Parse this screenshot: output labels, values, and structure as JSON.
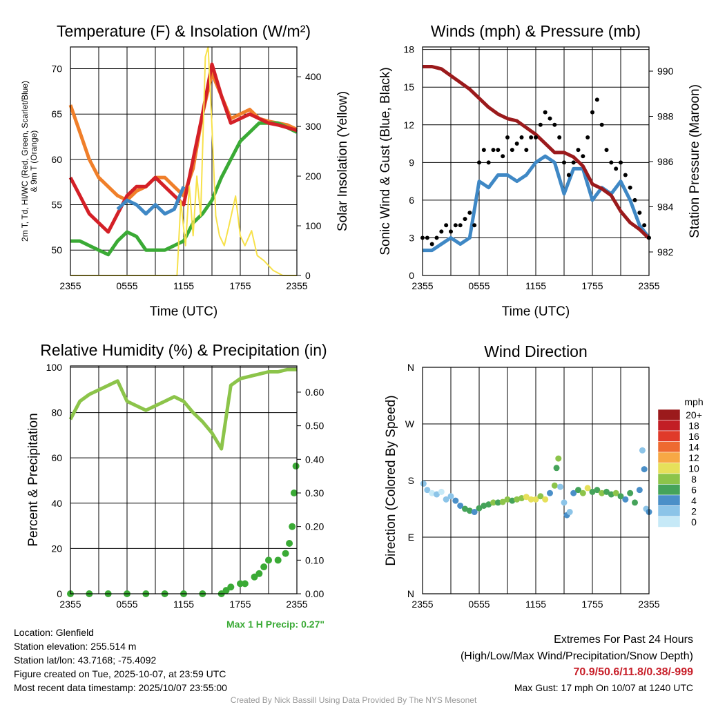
{
  "info": {
    "location": "Location: Glenfield",
    "elevation": "Station elevation: 255.514 m",
    "latlon": "Station lat/lon: 43.7168; -75.4092",
    "created": "Figure created on Tue, 2025-10-07, at 23:59 UTC",
    "recent": "Most recent data timestamp: 2025/10/07 23:55:00"
  },
  "extremes": {
    "title": "Extremes For Past 24 Hours",
    "subtitle": "(High/Low/Max Wind/Precipitation/Snow Depth)",
    "values": "70.9/50.6/11.8/0.38/-999",
    "gust": "Max Gust: 17 mph On 10/07 at 1240 UTC"
  },
  "credit": "Created By Nick Bassill Using Data Provided By The NYS Mesonet",
  "max_precip": "Max 1 H Precip: 0.27\"",
  "chart_data": [
    {
      "id": "temp",
      "type": "line",
      "title": "Temperature (F) & Insolation (W/m²)",
      "xlabel": "Time (UTC)",
      "ylabel": "2m T, Td, HI/WC (Red, Green, Scarlet/Blue) & 9m T (Orange)",
      "ylabel_line1": "2m T, Td, HI/WC (Red, Green, Scarlet/Blue)",
      "ylabel_line2": "& 9m T (Orange)",
      "y2label": "Solar Insolation (Yellow)",
      "xticks": [
        "2355",
        "0555",
        "1155",
        "1755",
        "2355"
      ],
      "yticks": [
        50,
        55,
        60,
        65,
        70
      ],
      "ylim": [
        47.2,
        72.4
      ],
      "y2ticks": [
        0,
        100,
        200,
        300,
        400
      ],
      "y2lim": [
        0,
        460
      ],
      "series": [
        {
          "name": "9m T",
          "color": "#f07f2a",
          "axis": "y",
          "values": [
            66,
            63,
            60,
            58,
            57,
            56,
            55.5,
            56.5,
            57,
            58,
            58,
            57,
            56,
            59,
            65,
            69.5,
            67,
            64.5,
            65,
            65.5,
            64.5,
            64.2,
            64,
            63.8,
            63.3
          ]
        },
        {
          "name": "Td",
          "color": "#3aaa35",
          "axis": "y",
          "values": [
            51,
            51,
            50.5,
            50,
            49.5,
            51,
            52,
            51.5,
            50,
            50,
            50,
            50.5,
            51,
            53,
            54,
            55.5,
            58,
            60,
            62,
            63,
            64,
            64,
            64,
            63.5,
            63
          ]
        },
        {
          "name": "2m T",
          "color": "#d42027",
          "axis": "y",
          "values": [
            58,
            56,
            54,
            53,
            52,
            54,
            56,
            57,
            57,
            58,
            57,
            56,
            55,
            60,
            65,
            70.5,
            67,
            64,
            64.5,
            65,
            64.5,
            64,
            63.8,
            63.5,
            63.2
          ]
        },
        {
          "name": "WC",
          "color": "#3f88c5",
          "axis": "y",
          "values": [
            null,
            null,
            null,
            null,
            null,
            54.5,
            55.5,
            55,
            54,
            55,
            54,
            54.5,
            57,
            null,
            null,
            null,
            null,
            null,
            null,
            null,
            null,
            null,
            null,
            null,
            null
          ]
        },
        {
          "name": "Solar",
          "color": "#f7e14a",
          "axis": "y2",
          "points": [
            [
              0,
              0
            ],
            [
              11.3,
              0
            ],
            [
              11.7,
              150
            ],
            [
              12.2,
              60
            ],
            [
              12.6,
              180
            ],
            [
              13.0,
              80
            ],
            [
              13.4,
              200
            ],
            [
              13.8,
              120
            ],
            [
              14.3,
              440
            ],
            [
              14.6,
              460
            ],
            [
              15.0,
              300
            ],
            [
              15.4,
              120
            ],
            [
              15.8,
              80
            ],
            [
              16.3,
              60
            ],
            [
              16.8,
              100
            ],
            [
              17.5,
              160
            ],
            [
              18.0,
              80
            ],
            [
              18.5,
              60
            ],
            [
              19.2,
              90
            ],
            [
              19.8,
              40
            ],
            [
              20.5,
              30
            ],
            [
              21.5,
              10
            ],
            [
              22.5,
              0
            ],
            [
              24,
              0
            ]
          ]
        }
      ]
    },
    {
      "id": "wind",
      "type": "line",
      "title": "Winds (mph) & Pressure (mb)",
      "xlabel": "Time (UTC)",
      "ylabel": "Sonic Wind & Gust (Blue, Black)",
      "y2label": "Station Pressure (Maroon)",
      "xticks": [
        "2355",
        "0555",
        "1155",
        "1755",
        "2355"
      ],
      "yticks": [
        0,
        3,
        6,
        9,
        12,
        15,
        18
      ],
      "ylim": [
        0,
        18.2
      ],
      "y2ticks": [
        982,
        984,
        986,
        988,
        990
      ],
      "y2lim": [
        980.96,
        991.07
      ],
      "series": [
        {
          "name": "Wind",
          "color": "#3f88c5",
          "axis": "y",
          "values": [
            2,
            2,
            2.5,
            3,
            2.5,
            3,
            7.5,
            7,
            8,
            8,
            7.5,
            8,
            9,
            9.5,
            9,
            6.5,
            8.5,
            8.5,
            6,
            7,
            6.5,
            7.5,
            6,
            4,
            3
          ]
        },
        {
          "name": "Pressure",
          "color": "#9b1a1c",
          "axis": "y2",
          "values": [
            990.2,
            990.2,
            990.1,
            989.8,
            989.5,
            989.2,
            988.8,
            988.4,
            988.1,
            987.9,
            987.8,
            987.5,
            987.2,
            986.8,
            986.4,
            986.4,
            986.2,
            985.8,
            985.0,
            984.8,
            984.5,
            983.8,
            983.3,
            983.0,
            982.6
          ]
        },
        {
          "name": "Gust",
          "color": "#000000",
          "axis": "y",
          "scatter": true,
          "values": [
            3,
            3,
            2.5,
            3,
            3.5,
            4,
            3.5,
            4,
            4,
            4.5,
            5,
            4,
            9,
            10,
            9,
            10,
            10,
            9.5,
            11,
            10,
            10.5,
            11,
            10,
            11,
            11,
            12,
            13,
            12.5,
            12,
            11,
            9,
            8,
            9,
            10,
            9.5,
            11,
            13,
            14,
            12,
            10,
            9,
            8.5,
            9,
            8,
            7,
            6,
            5,
            4,
            3
          ]
        }
      ]
    },
    {
      "id": "rh",
      "type": "line",
      "title": "Relative Humidity (%) & Precipitation (in)",
      "ylabel": "Percent & Precipitation",
      "xticks": [
        "2355",
        "0555",
        "1155",
        "1755",
        "2355"
      ],
      "yticks": [
        0,
        20,
        40,
        60,
        80,
        100
      ],
      "ylim": [
        0,
        100.6
      ],
      "y2ticks": [
        "0.00",
        "0.10",
        "0.20",
        "0.30",
        "0.40",
        "0.50",
        "0.60"
      ],
      "y2lim": [
        0,
        0.678
      ],
      "series": [
        {
          "name": "RH",
          "color": "#8cc44a",
          "axis": "y",
          "values": [
            77,
            85,
            88,
            90,
            92,
            94,
            85,
            83,
            81,
            83,
            85,
            87,
            85,
            80,
            76,
            71,
            64,
            92,
            95,
            96,
            97,
            98,
            98,
            99,
            99
          ]
        },
        {
          "name": "Precip",
          "color": "#3aaa35",
          "axis": "y2",
          "scatter": true,
          "points": [
            [
              0,
              0
            ],
            [
              2,
              0
            ],
            [
              4,
              0
            ],
            [
              6,
              0
            ],
            [
              8,
              0
            ],
            [
              10,
              0
            ],
            [
              12,
              0
            ],
            [
              14,
              0
            ],
            [
              16,
              0
            ],
            [
              16.5,
              0.01
            ],
            [
              17,
              0.02
            ],
            [
              18,
              0.03
            ],
            [
              18.5,
              0.03
            ],
            [
              19.5,
              0.05
            ],
            [
              20,
              0.06
            ],
            [
              20.5,
              0.08
            ],
            [
              21,
              0.1
            ],
            [
              22,
              0.1
            ],
            [
              22.8,
              0.12
            ],
            [
              23.2,
              0.15
            ],
            [
              23.5,
              0.2
            ],
            [
              23.7,
              0.3
            ],
            [
              23.9,
              0.38
            ]
          ]
        }
      ]
    },
    {
      "id": "dir",
      "type": "scatter",
      "title": "Wind Direction",
      "ylabel": "Direction (Colored By Speed)",
      "xticks": [
        "2355",
        "0555",
        "1155",
        "1755",
        "2355"
      ],
      "yticks": [
        "N",
        "E",
        "S",
        "W",
        "N"
      ],
      "ylim": [
        0,
        360
      ],
      "colorbar": {
        "title": "mph",
        "labels": [
          "20+",
          "18",
          "16",
          "14",
          "12",
          "10",
          "8",
          "6",
          "4",
          "2",
          "0"
        ],
        "colors": [
          "#9b1a1c",
          "#c21e25",
          "#e03a2a",
          "#ee6a30",
          "#f7a845",
          "#e6e05a",
          "#8cc44a",
          "#45a35a",
          "#4a8fc8",
          "#8cc4e8",
          "#c6e9f7"
        ]
      },
      "points": [
        [
          0.1,
          175,
          2
        ],
        [
          0.5,
          165,
          3
        ],
        [
          1,
          160,
          1
        ],
        [
          1.5,
          158,
          2
        ],
        [
          2,
          162,
          1
        ],
        [
          2.5,
          150,
          2
        ],
        [
          3,
          155,
          3
        ],
        [
          3.5,
          148,
          4
        ],
        [
          4,
          140,
          5
        ],
        [
          4.5,
          135,
          6
        ],
        [
          5,
          132,
          6
        ],
        [
          5.5,
          130,
          5
        ],
        [
          6,
          136,
          6
        ],
        [
          6.5,
          140,
          7
        ],
        [
          7,
          142,
          7
        ],
        [
          7.5,
          145,
          8
        ],
        [
          8,
          145,
          7
        ],
        [
          8.5,
          146,
          8
        ],
        [
          9,
          150,
          8
        ],
        [
          9.5,
          148,
          7
        ],
        [
          10,
          150,
          9
        ],
        [
          10.5,
          152,
          8
        ],
        [
          11,
          154,
          10
        ],
        [
          11.5,
          150,
          11
        ],
        [
          12,
          150,
          10
        ],
        [
          12.5,
          155,
          9
        ],
        [
          13,
          150,
          10
        ],
        [
          13.5,
          160,
          4
        ],
        [
          14,
          172,
          8
        ],
        [
          14.2,
          200,
          6
        ],
        [
          14.4,
          215,
          8
        ],
        [
          14.6,
          170,
          3
        ],
        [
          15,
          145,
          3
        ],
        [
          15.3,
          125,
          4
        ],
        [
          15.6,
          130,
          3
        ],
        [
          16,
          160,
          4
        ],
        [
          16.5,
          165,
          6
        ],
        [
          17,
          160,
          8
        ],
        [
          17.5,
          168,
          10
        ],
        [
          18,
          162,
          6
        ],
        [
          18.5,
          165,
          7
        ],
        [
          19,
          160,
          8
        ],
        [
          19.5,
          162,
          7
        ],
        [
          20,
          158,
          6
        ],
        [
          20.5,
          160,
          8
        ],
        [
          21,
          155,
          6
        ],
        [
          21.5,
          150,
          5
        ],
        [
          22,
          160,
          7
        ],
        [
          22.5,
          145,
          6
        ],
        [
          23,
          165,
          4
        ],
        [
          23.3,
          228,
          2
        ],
        [
          23.5,
          198,
          4
        ],
        [
          23.7,
          135,
          3
        ],
        [
          24,
          130,
          4
        ]
      ]
    }
  ]
}
